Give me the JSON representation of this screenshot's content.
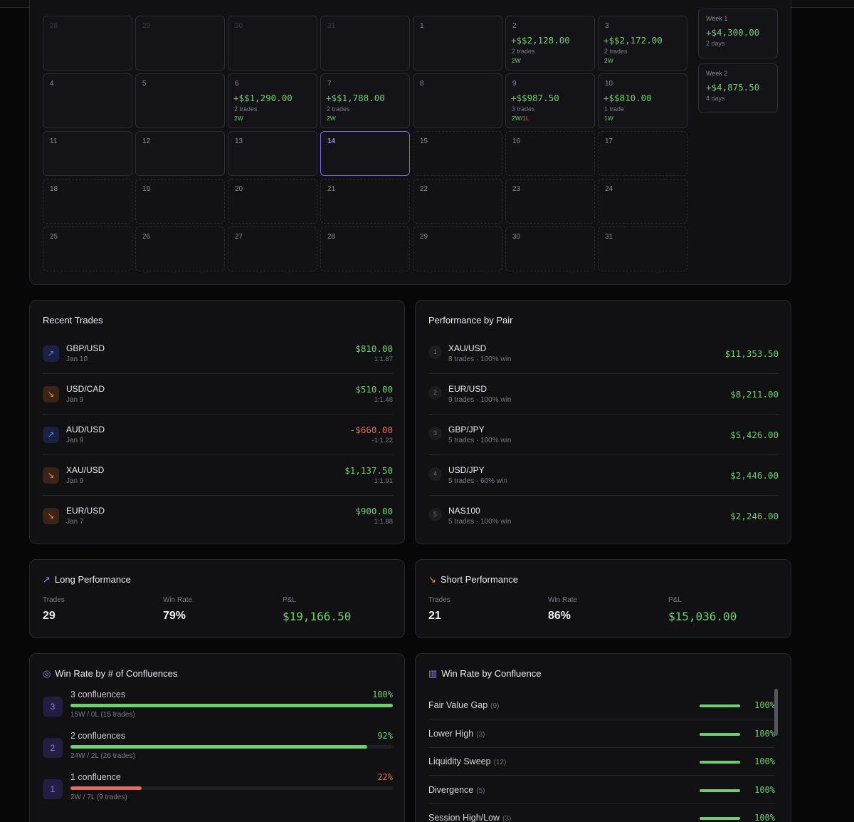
{
  "calendar": {
    "days": [
      {
        "num": "28",
        "state": "dim",
        "pnl": "",
        "trades": "",
        "wl": ""
      },
      {
        "num": "29",
        "state": "dim",
        "pnl": "",
        "trades": "",
        "wl": ""
      },
      {
        "num": "30",
        "state": "dim",
        "pnl": "",
        "trades": "",
        "wl": ""
      },
      {
        "num": "31",
        "state": "dim",
        "pnl": "",
        "trades": "",
        "wl": ""
      },
      {
        "num": "1",
        "state": "past",
        "pnl": "",
        "trades": "",
        "wl": ""
      },
      {
        "num": "2",
        "state": "past",
        "pnl": "+$$2,128.00",
        "trades": "2 trades",
        "wl": "2W"
      },
      {
        "num": "3",
        "state": "past",
        "pnl": "+$$2,172.00",
        "trades": "2 trades",
        "wl": "2W"
      },
      {
        "num": "4",
        "state": "past",
        "pnl": "",
        "trades": "",
        "wl": ""
      },
      {
        "num": "5",
        "state": "past",
        "pnl": "",
        "trades": "",
        "wl": ""
      },
      {
        "num": "6",
        "state": "past",
        "pnl": "+$$1,290.00",
        "trades": "2 trades",
        "wl": "2W"
      },
      {
        "num": "7",
        "state": "past",
        "pnl": "+$$1,788.00",
        "trades": "2 trades",
        "wl": "2W"
      },
      {
        "num": "8",
        "state": "past",
        "pnl": "",
        "trades": "",
        "wl": ""
      },
      {
        "num": "9",
        "state": "past",
        "pnl": "+$$987.50",
        "trades": "3 trades",
        "wl": "2W",
        "wl_loss": "1L"
      },
      {
        "num": "10",
        "state": "past",
        "pnl": "+$$810.00",
        "trades": "1 trade",
        "wl": "1W"
      },
      {
        "num": "11",
        "state": "past",
        "pnl": "",
        "trades": "",
        "wl": ""
      },
      {
        "num": "12",
        "state": "past",
        "pnl": "",
        "trades": "",
        "wl": ""
      },
      {
        "num": "13",
        "state": "past",
        "pnl": "",
        "trades": "",
        "wl": ""
      },
      {
        "num": "14",
        "state": "today",
        "pnl": "",
        "trades": "",
        "wl": ""
      },
      {
        "num": "15",
        "state": "future",
        "pnl": "",
        "trades": "",
        "wl": ""
      },
      {
        "num": "16",
        "state": "future",
        "pnl": "",
        "trades": "",
        "wl": ""
      },
      {
        "num": "17",
        "state": "future",
        "pnl": "",
        "trades": "",
        "wl": ""
      },
      {
        "num": "18",
        "state": "future",
        "pnl": "",
        "trades": "",
        "wl": ""
      },
      {
        "num": "19",
        "state": "future",
        "pnl": "",
        "trades": "",
        "wl": ""
      },
      {
        "num": "20",
        "state": "future",
        "pnl": "",
        "trades": "",
        "wl": ""
      },
      {
        "num": "21",
        "state": "future",
        "pnl": "",
        "trades": "",
        "wl": ""
      },
      {
        "num": "22",
        "state": "future",
        "pnl": "",
        "trades": "",
        "wl": ""
      },
      {
        "num": "23",
        "state": "future",
        "pnl": "",
        "trades": "",
        "wl": ""
      },
      {
        "num": "24",
        "state": "future",
        "pnl": "",
        "trades": "",
        "wl": ""
      },
      {
        "num": "25",
        "state": "future",
        "pnl": "",
        "trades": "",
        "wl": ""
      },
      {
        "num": "26",
        "state": "future",
        "pnl": "",
        "trades": "",
        "wl": ""
      },
      {
        "num": "27",
        "state": "future",
        "pnl": "",
        "trades": "",
        "wl": ""
      },
      {
        "num": "28",
        "state": "future",
        "pnl": "",
        "trades": "",
        "wl": ""
      },
      {
        "num": "29",
        "state": "future",
        "pnl": "",
        "trades": "",
        "wl": ""
      },
      {
        "num": "30",
        "state": "future",
        "pnl": "",
        "trades": "",
        "wl": ""
      },
      {
        "num": "31",
        "state": "future",
        "pnl": "",
        "trades": "",
        "wl": ""
      }
    ],
    "weeks": [
      {
        "label": "Week 1",
        "pnl": "+$4,300.00",
        "days": "2 days"
      },
      {
        "label": "Week 2",
        "pnl": "+$4,875.50",
        "days": "4 days"
      }
    ]
  },
  "recent_trades": {
    "title": "Recent Trades",
    "items": [
      {
        "symbol": "GBP/USD",
        "date": "Jan 10",
        "amount": "$810.00",
        "rr": "1:1.67",
        "direction": "up",
        "icon": "trend-up-icon",
        "negative": false
      },
      {
        "symbol": "USD/CAD",
        "date": "Jan 9",
        "amount": "$510.00",
        "rr": "1:1.48",
        "direction": "down",
        "icon": "trend-down-icon",
        "negative": false
      },
      {
        "symbol": "AUD/USD",
        "date": "Jan 9",
        "amount": "-$660.00",
        "rr": "-1:1.22",
        "direction": "up",
        "icon": "trend-up-icon",
        "negative": true
      },
      {
        "symbol": "XAU/USD",
        "date": "Jan 9",
        "amount": "$1,137.50",
        "rr": "1:1.91",
        "direction": "down",
        "icon": "trend-down-icon",
        "negative": false
      },
      {
        "symbol": "EUR/USD",
        "date": "Jan 7",
        "amount": "$900.00",
        "rr": "1:1.88",
        "direction": "down",
        "icon": "trend-down-icon",
        "negative": false
      }
    ]
  },
  "performance_by_pair": {
    "title": "Performance by Pair",
    "items": [
      {
        "rank": "1",
        "symbol": "XAU/USD",
        "meta": "8 trades · 100% win",
        "amount": "$11,353.50"
      },
      {
        "rank": "2",
        "symbol": "EUR/USD",
        "meta": "9 trades · 100% win",
        "amount": "$8,211.00"
      },
      {
        "rank": "3",
        "symbol": "GBP/JPY",
        "meta": "5 trades · 100% win",
        "amount": "$5,426.00"
      },
      {
        "rank": "4",
        "symbol": "USD/JPY",
        "meta": "5 trades · 60% win",
        "amount": "$2,446.00"
      },
      {
        "rank": "5",
        "symbol": "NAS100",
        "meta": "5 trades · 100% win",
        "amount": "$2,246.00"
      }
    ]
  },
  "long_performance": {
    "title": "Long Performance",
    "icon": "arrow-up-right-icon",
    "trades_label": "Trades",
    "trades": "29",
    "winrate_label": "Win Rate",
    "winrate": "79%",
    "pnl_label": "P&L",
    "pnl": "$19,166.50"
  },
  "short_performance": {
    "title": "Short Performance",
    "icon": "arrow-down-right-icon",
    "trades_label": "Trades",
    "trades": "21",
    "winrate_label": "Win Rate",
    "winrate": "86%",
    "pnl_label": "P&L",
    "pnl": "$15,036.00"
  },
  "win_rate_by_count": {
    "title": "Win Rate by # of Confluences",
    "icon": "target-icon",
    "items": [
      {
        "badge": "3",
        "label": "3 confluences",
        "pct": "100%",
        "fraction": 1.0,
        "sub": "15W / 0L (15 trades)",
        "color": "#6fcf6f"
      },
      {
        "badge": "2",
        "label": "2 confluences",
        "pct": "92%",
        "fraction": 0.92,
        "sub": "24W / 2L (26 trades)",
        "color": "#6fcf6f"
      },
      {
        "badge": "1",
        "label": "1 confluence",
        "pct": "22%",
        "fraction": 0.22,
        "sub": "2W / 7L (9 trades)",
        "color": "#e06c5a"
      }
    ]
  },
  "win_rate_by_confluence": {
    "title": "Win Rate by Confluence",
    "icon": "bar-chart-icon",
    "items": [
      {
        "name": "Fair Value Gap",
        "count": "(9)",
        "pct": "100%",
        "fraction": 1.0
      },
      {
        "name": "Lower High",
        "count": "(3)",
        "pct": "100%",
        "fraction": 1.0
      },
      {
        "name": "Liquidity Sweep",
        "count": "(12)",
        "pct": "100%",
        "fraction": 1.0
      },
      {
        "name": "Divergence",
        "count": "(5)",
        "pct": "100%",
        "fraction": 1.0
      },
      {
        "name": "Session High/Low",
        "count": "(3)",
        "pct": "100%",
        "fraction": 1.0
      }
    ]
  },
  "colors": {
    "profit": "#6fcf6f",
    "loss": "#e06c5a",
    "accent": "#7d6cf0",
    "background": "#070708",
    "panel": "#111114"
  }
}
